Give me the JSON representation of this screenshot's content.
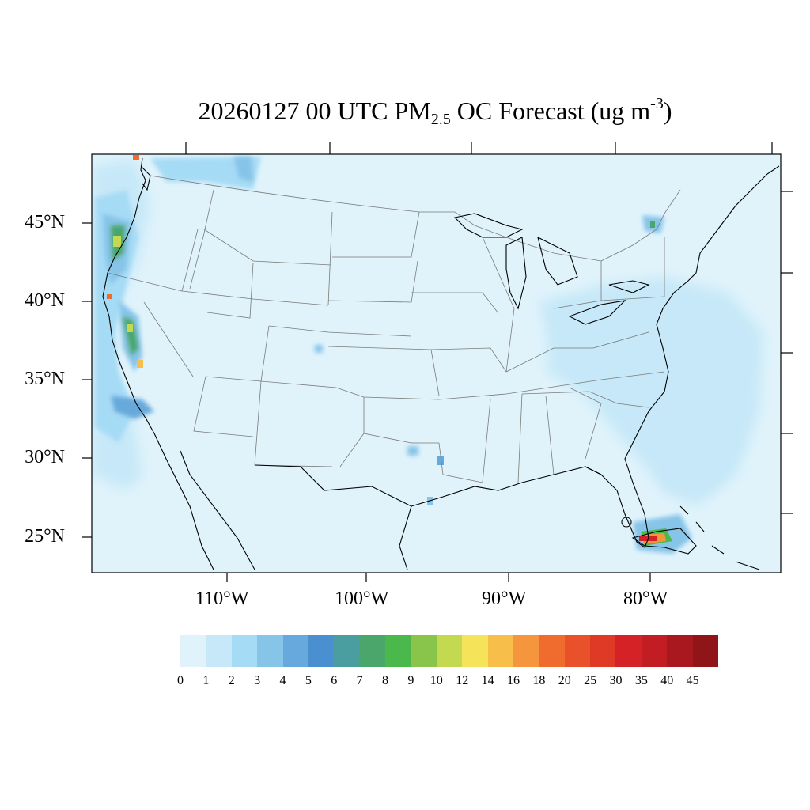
{
  "title": {
    "main": "20260127 00 UTC PM",
    "subscript": "2.5",
    "rest": " OC Forecast (ug m",
    "superscript": "-3",
    "close": ")"
  },
  "lat_labels": [
    "45°N",
    "40°N",
    "35°N",
    "30°N",
    "25°N"
  ],
  "lon_labels": [
    "110°W",
    "100°W",
    "90°W",
    "80°W"
  ],
  "legend": {
    "levels": [
      "0",
      "1",
      "2",
      "3",
      "4",
      "5",
      "6",
      "7",
      "8",
      "9",
      "10",
      "12",
      "14",
      "16",
      "18",
      "20",
      "25",
      "30",
      "35",
      "40",
      "45"
    ],
    "colors": [
      "#e0f3fb",
      "#c6e8f8",
      "#a6dbf5",
      "#86c4e8",
      "#67a9dc",
      "#4a8fd0",
      "#4b9ea0",
      "#4aa66a",
      "#4bb84b",
      "#88c54a",
      "#c3d94f",
      "#f5e45a",
      "#f7be4a",
      "#f5963e",
      "#f06c2e",
      "#e8512a",
      "#de3a26",
      "#d42226",
      "#c11d22",
      "#a8181e",
      "#8f1518"
    ]
  },
  "map": {
    "ocean_color": "#e0f3fb",
    "land_color": "#e0f3fb",
    "border_color": "#7a7a7a",
    "coast_color": "#000000"
  }
}
